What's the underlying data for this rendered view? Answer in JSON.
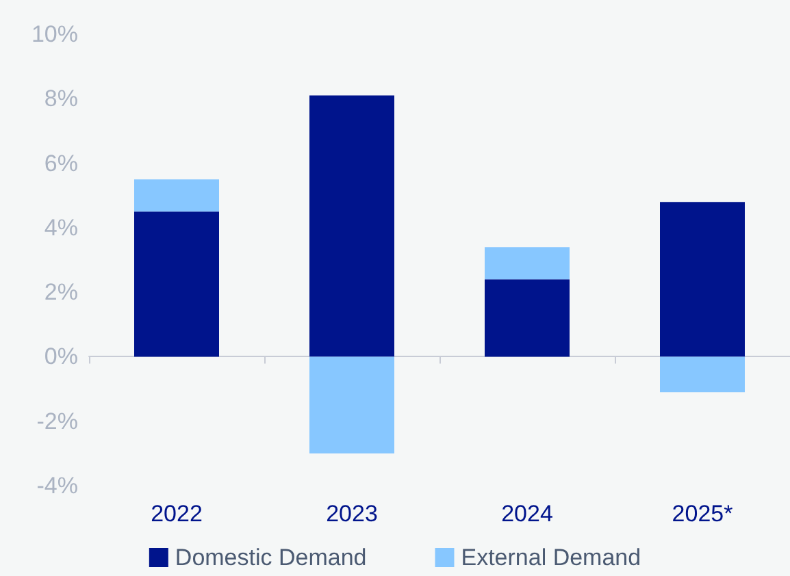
{
  "chart_data": {
    "type": "bar",
    "stacked": true,
    "categories": [
      "2022",
      "2023",
      "2024",
      "2025*"
    ],
    "series": [
      {
        "name": "Domestic Demand",
        "color": "#00148c",
        "values": [
          4.5,
          8.1,
          2.4,
          4.8
        ]
      },
      {
        "name": "External Demand",
        "color": "#87c7ff",
        "values": [
          1.0,
          -3.0,
          1.0,
          -1.1
        ]
      }
    ],
    "ylim": [
      -4,
      10
    ],
    "yticks": [
      {
        "value": -4,
        "label": "-4%"
      },
      {
        "value": -2,
        "label": "-2%"
      },
      {
        "value": 0,
        "label": "0%"
      },
      {
        "value": 2,
        "label": "2%"
      },
      {
        "value": 4,
        "label": "4%"
      },
      {
        "value": 6,
        "label": "6%"
      },
      {
        "value": 8,
        "label": "8%"
      },
      {
        "value": 10,
        "label": "10%"
      }
    ],
    "legend": "bottom"
  }
}
